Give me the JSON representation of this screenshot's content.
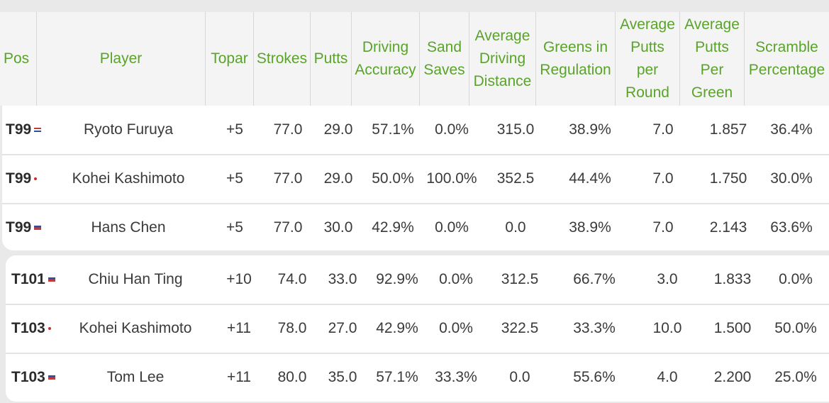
{
  "headers": {
    "pos": "Pos",
    "player": "Player",
    "topar": "Topar",
    "strokes": "Strokes",
    "putts": "Putts",
    "driving_accuracy": [
      "Driving",
      "Accuracy"
    ],
    "sand_saves": [
      "Sand",
      "Saves"
    ],
    "avg_driving_distance": [
      "Average",
      "Driving",
      "Distance"
    ],
    "gir": [
      "Greens in",
      "Regulation"
    ],
    "avg_putts_per_round": [
      "Average",
      "Putts",
      "per",
      "Round"
    ],
    "avg_putts_per_green": [
      "Average",
      "Putts",
      "Per",
      "Green"
    ],
    "scramble": [
      "Scramble",
      "Percentage"
    ]
  },
  "rows": [
    {
      "pos": "T99",
      "flag": "us-flag-icon",
      "player": "Ryoto Furuya",
      "topar": "+5",
      "strokes": "77.0",
      "putts": "29.0",
      "driving_accuracy": "57.1%",
      "sand_saves": "0.0%",
      "avg_driving_distance": "315.0",
      "gir": "38.9%",
      "avg_putts_per_round": "7.0",
      "avg_putts_per_green": "1.857",
      "scramble": "36.4%"
    },
    {
      "pos": "T99",
      "flag": "japan-flag-icon",
      "player": "Kohei Kashimoto",
      "topar": "+5",
      "strokes": "77.0",
      "putts": "29.0",
      "driving_accuracy": "50.0%",
      "sand_saves": "100.0%",
      "avg_driving_distance": "352.5",
      "gir": "44.4%",
      "avg_putts_per_round": "7.0",
      "avg_putts_per_green": "1.750",
      "scramble": "30.0%"
    },
    {
      "pos": "T99",
      "flag": "chinese-taipei-flag-icon",
      "player": "Hans Chen",
      "topar": "+5",
      "strokes": "77.0",
      "putts": "30.0",
      "driving_accuracy": "42.9%",
      "sand_saves": "0.0%",
      "avg_driving_distance": "0.0",
      "gir": "38.9%",
      "avg_putts_per_round": "7.0",
      "avg_putts_per_green": "2.143",
      "scramble": "63.6%"
    },
    {
      "pos": "T101",
      "flag": "chinese-taipei-flag-icon",
      "player": "Chiu Han Ting",
      "topar": "+10",
      "strokes": "74.0",
      "putts": "33.0",
      "driving_accuracy": "92.9%",
      "sand_saves": "0.0%",
      "avg_driving_distance": "312.5",
      "gir": "66.7%",
      "avg_putts_per_round": "3.0",
      "avg_putts_per_green": "1.833",
      "scramble": "0.0%"
    },
    {
      "pos": "T103",
      "flag": "japan-flag-icon",
      "player": "Kohei Kashimoto",
      "topar": "+11",
      "strokes": "78.0",
      "putts": "27.0",
      "driving_accuracy": "42.9%",
      "sand_saves": "0.0%",
      "avg_driving_distance": "322.5",
      "gir": "33.3%",
      "avg_putts_per_round": "10.0",
      "avg_putts_per_green": "1.500",
      "scramble": "50.0%"
    },
    {
      "pos": "T103",
      "flag": "chinese-taipei-flag-icon",
      "player": "Tom Lee",
      "topar": "+11",
      "strokes": "80.0",
      "putts": "35.0",
      "driving_accuracy": "57.1%",
      "sand_saves": "33.3%",
      "avg_driving_distance": "0.0",
      "gir": "55.6%",
      "avg_putts_per_round": "4.0",
      "avg_putts_per_green": "2.200",
      "scramble": "25.0%"
    }
  ]
}
